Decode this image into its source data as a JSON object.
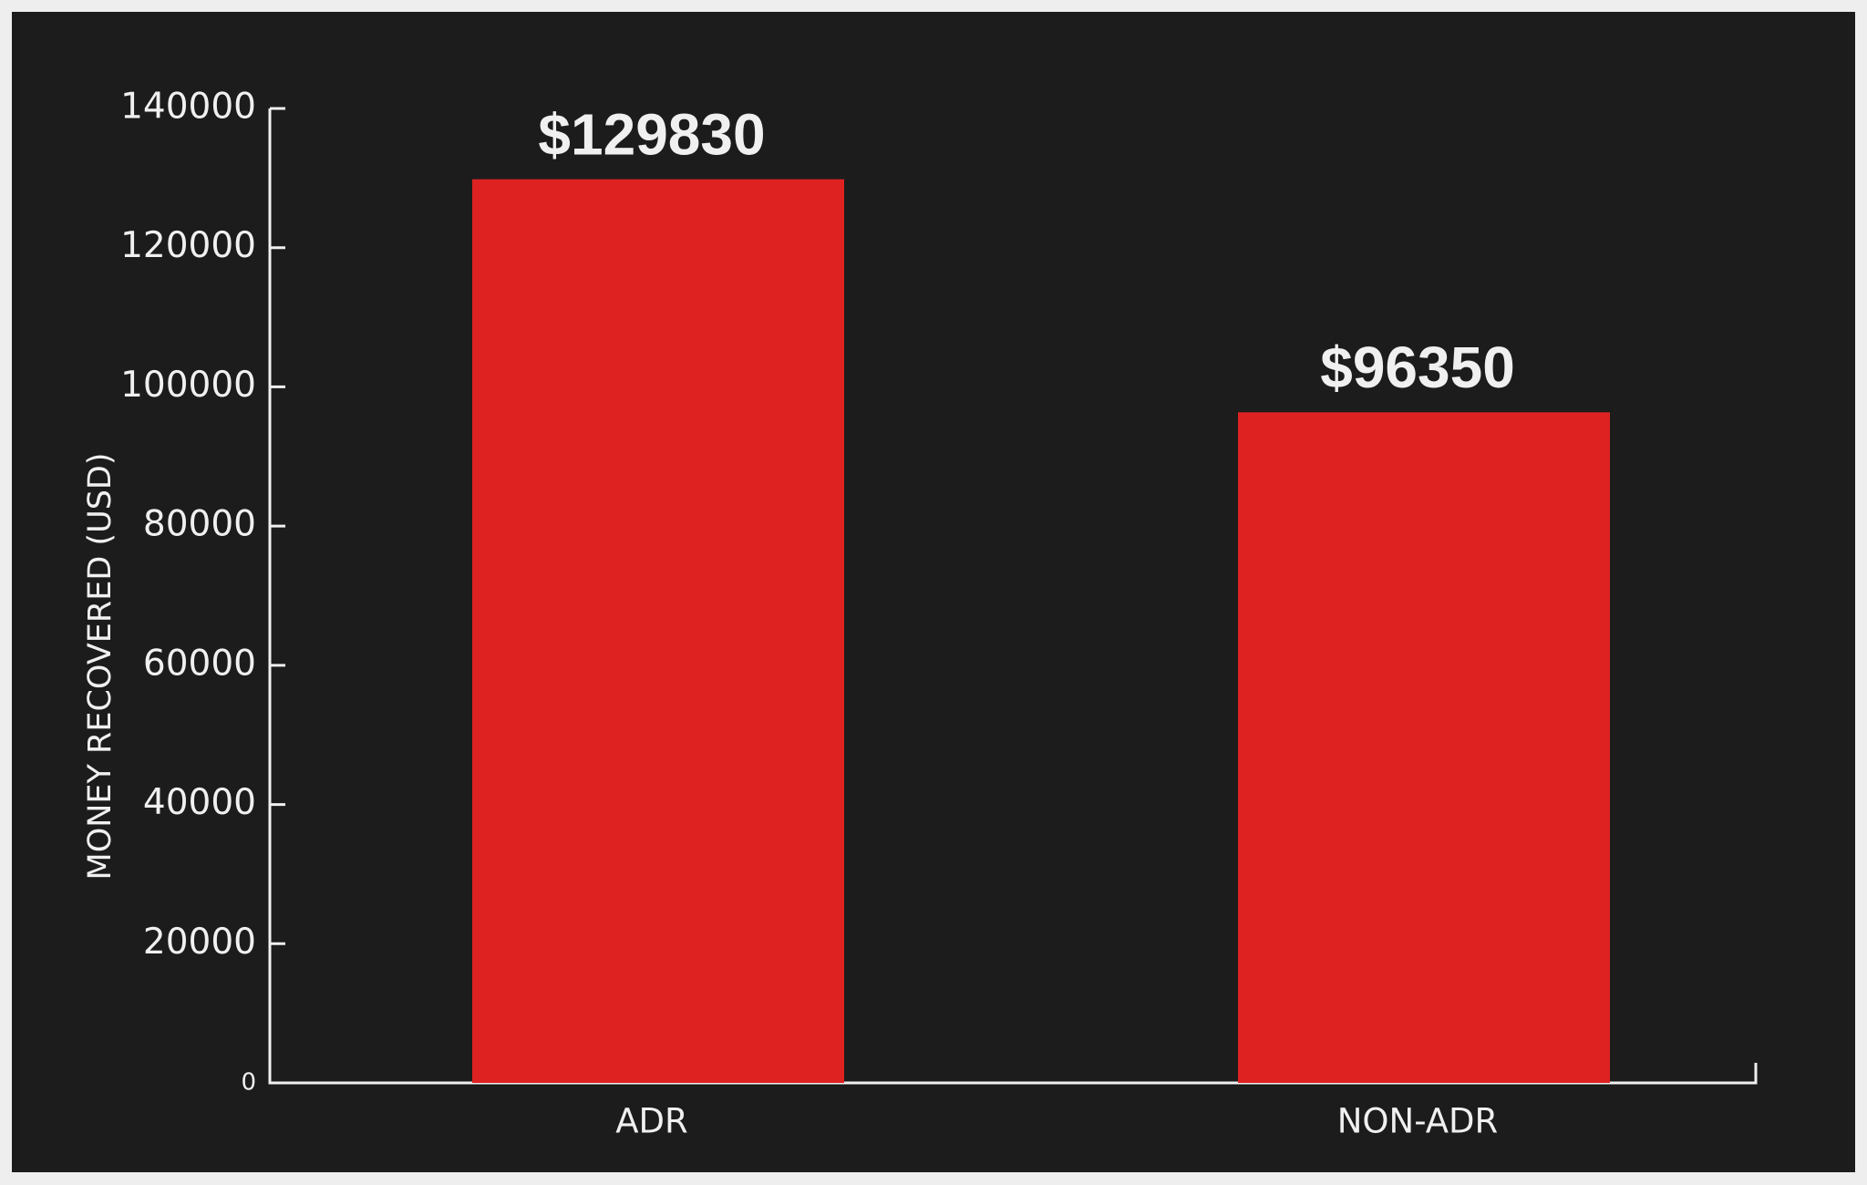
{
  "chart_data": {
    "type": "bar",
    "ylabel": "MONEY RECOVERED (USD)",
    "categories": [
      "ADR",
      "NON-ADR"
    ],
    "values": [
      129830,
      96350
    ],
    "value_labels": [
      "$129830",
      "$96350"
    ],
    "color": "#de2222",
    "ylim": [
      0,
      140000
    ],
    "yticks": [
      0,
      20000,
      40000,
      60000,
      80000,
      100000,
      120000,
      140000
    ]
  }
}
